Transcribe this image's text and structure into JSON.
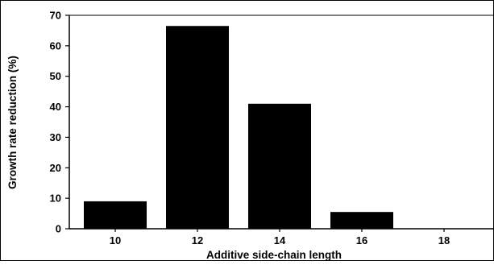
{
  "chart_data": {
    "type": "bar",
    "title": "",
    "xlabel": "Additive side-chain length",
    "ylabel": "Growth rate reduction (%)",
    "categories": [
      "10",
      "12",
      "14",
      "16",
      "18"
    ],
    "values": [
      9,
      66.5,
      41,
      5.5,
      0
    ],
    "ylim": [
      0,
      70
    ],
    "yticks": [
      "0",
      "10",
      "20",
      "30",
      "40",
      "50",
      "60",
      "70"
    ],
    "grid": false,
    "legend": "none",
    "bar_color": "#000000"
  }
}
